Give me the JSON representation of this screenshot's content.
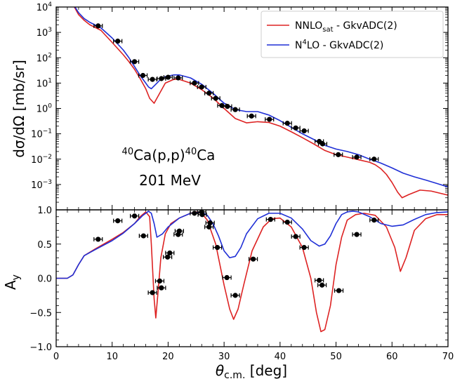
{
  "chart_data": [
    {
      "type": "line",
      "panel": "cross-section",
      "ylabel": "dσ/dΩ [mb/sr]",
      "yscale": "log",
      "xlim": [
        0,
        70
      ],
      "ylim_exp": [
        -4,
        4
      ],
      "y_tick_exponents": [
        -3,
        -2,
        -1,
        0,
        1,
        2,
        3,
        4
      ],
      "y_tick_labels": [
        "10^-3",
        "10^-2",
        "10^-1",
        "10^0",
        "10^1",
        "10^2",
        "10^3",
        "10^4"
      ],
      "annotation": [
        "40Ca(p,p)40Ca",
        "201 MeV"
      ],
      "legend_position": "top-right",
      "legend": [
        {
          "base": "NNLO",
          "sub": "sat",
          "rest": " - GkvADC(2)",
          "color": "#dd2222"
        },
        {
          "base": "N",
          "sup": "4",
          "rest": "LO - GkvADC(2)",
          "color": "#1f2fd6"
        }
      ],
      "series": [
        {
          "color": "#dd2222",
          "x": [
            0,
            2.5,
            4,
            5,
            6,
            8,
            10,
            12,
            13,
            14,
            15,
            16,
            16.7,
            17.5,
            18.5,
            19.5,
            21,
            22,
            24,
            26,
            28,
            30,
            32,
            34,
            36,
            38,
            40,
            42,
            44,
            46,
            48,
            50,
            52,
            54,
            56,
            57,
            58,
            59,
            60,
            61,
            61.8,
            63,
            65,
            67,
            70
          ],
          "y": [
            20000,
            20000,
            5000,
            3000,
            2000,
            1200,
            400,
            130,
            70,
            35,
            15,
            6,
            2.5,
            1.6,
            4,
            10,
            14,
            14,
            10,
            5.5,
            2.6,
            1.0,
            0.4,
            0.27,
            0.3,
            0.28,
            0.2,
            0.12,
            0.07,
            0.04,
            0.022,
            0.015,
            0.012,
            0.0095,
            0.0075,
            0.006,
            0.0042,
            0.0025,
            0.0012,
            0.0005,
            0.0003,
            0.0004,
            0.0006,
            0.00055,
            0.00038
          ]
        },
        {
          "color": "#1f2fd6",
          "x": [
            0,
            2.5,
            4,
            5,
            6,
            8,
            10,
            12,
            13,
            14,
            15,
            16,
            16.5,
            17,
            17.8,
            18.5,
            19.5,
            21,
            22,
            24,
            26,
            28,
            30,
            32,
            34,
            36,
            38,
            40,
            42,
            44,
            46,
            48,
            50,
            52,
            54,
            56,
            58,
            60,
            62,
            64,
            66,
            68,
            70
          ],
          "y": [
            20000,
            20000,
            6000,
            3500,
            2500,
            1500,
            600,
            200,
            100,
            45,
            20,
            10,
            7,
            6,
            9,
            13,
            18,
            21,
            21,
            16,
            9,
            4,
            1.6,
            0.9,
            0.75,
            0.75,
            0.55,
            0.33,
            0.18,
            0.1,
            0.06,
            0.035,
            0.025,
            0.02,
            0.015,
            0.01,
            0.007,
            0.0045,
            0.0028,
            0.002,
            0.0015,
            0.0011,
            0.0008
          ]
        }
      ],
      "points": {
        "x": [
          7.5,
          11,
          14,
          15.5,
          17.2,
          18.8,
          20,
          21.8,
          24.7,
          26,
          27.3,
          28.5,
          29.6,
          30.6,
          32,
          34.9,
          38.1,
          41.3,
          42.8,
          44.3,
          47,
          47.6,
          50.4,
          53.7,
          56.8
        ],
        "y": [
          1800,
          450,
          70,
          20,
          14,
          15,
          17,
          16,
          10,
          7,
          4,
          2.5,
          1.3,
          1.2,
          0.9,
          0.5,
          0.37,
          0.26,
          0.17,
          0.13,
          0.05,
          0.04,
          0.015,
          0.012,
          0.01
        ]
      }
    },
    {
      "type": "line",
      "panel": "analyzing-power",
      "xlabel": "θc.m. [deg]",
      "ylabel": "Ay",
      "xlim": [
        0,
        70
      ],
      "ylim": [
        -1,
        1
      ],
      "x_ticks": [
        0,
        10,
        20,
        30,
        40,
        50,
        60,
        70
      ],
      "x_tick_labels": [
        "0",
        "10",
        "20",
        "30",
        "40",
        "50",
        "60",
        "70"
      ],
      "y_ticks": [
        -1,
        -0.5,
        0,
        0.5,
        1
      ],
      "y_tick_labels": [
        "−1.0",
        "−0.5",
        "0.0",
        "0.5",
        "1.0"
      ],
      "series": [
        {
          "color": "#dd2222",
          "x": [
            0,
            2,
            3,
            4,
            5,
            7,
            10,
            12,
            14,
            15,
            16,
            16.7,
            17,
            17.5,
            17.8,
            18.2,
            18.7,
            19.5,
            20.5,
            22,
            24,
            25,
            26,
            27,
            28.5,
            30,
            31,
            31.7,
            32.5,
            33.5,
            35,
            37,
            38.5,
            40,
            42,
            44,
            45.5,
            46.5,
            47.3,
            48,
            49,
            50,
            51,
            52,
            53.5,
            55,
            57,
            59,
            60.5,
            61.5,
            62.5,
            64,
            66,
            68,
            70
          ],
          "y": [
            0,
            0,
            0.05,
            0.2,
            0.33,
            0.43,
            0.57,
            0.67,
            0.8,
            0.9,
            0.97,
            0.9,
            0.5,
            -0.3,
            -0.58,
            -0.2,
            0.3,
            0.65,
            0.8,
            0.88,
            0.95,
            0.97,
            0.95,
            0.85,
            0.5,
            -0.1,
            -0.45,
            -0.6,
            -0.45,
            -0.1,
            0.4,
            0.75,
            0.87,
            0.88,
            0.75,
            0.45,
            0.0,
            -0.5,
            -0.78,
            -0.75,
            -0.4,
            0.2,
            0.6,
            0.85,
            0.93,
            0.95,
            0.92,
            0.75,
            0.45,
            0.1,
            0.3,
            0.7,
            0.87,
            0.93,
            0.93
          ]
        },
        {
          "color": "#1f2fd6",
          "x": [
            0,
            2,
            3,
            4,
            5,
            7,
            10,
            12,
            14,
            15.5,
            16.5,
            17,
            17.5,
            18,
            19,
            20,
            22,
            24,
            26,
            27,
            28,
            29,
            30,
            31,
            32,
            33,
            34,
            36,
            38,
            40,
            42,
            44,
            45.5,
            47,
            48,
            49,
            50,
            51,
            52,
            53,
            54,
            56,
            58,
            60,
            62,
            64,
            66,
            68,
            70
          ],
          "y": [
            0,
            0,
            0.05,
            0.2,
            0.33,
            0.42,
            0.55,
            0.66,
            0.8,
            0.92,
            0.98,
            0.95,
            0.8,
            0.6,
            0.65,
            0.75,
            0.88,
            0.95,
            0.97,
            0.92,
            0.8,
            0.62,
            0.4,
            0.3,
            0.32,
            0.45,
            0.65,
            0.87,
            0.95,
            0.95,
            0.88,
            0.72,
            0.55,
            0.47,
            0.5,
            0.62,
            0.8,
            0.93,
            0.97,
            0.98,
            0.97,
            0.9,
            0.8,
            0.76,
            0.78,
            0.86,
            0.93,
            0.96,
            0.97
          ]
        }
      ],
      "points": {
        "x": [
          7.5,
          11,
          14,
          15.6,
          17.2,
          18.5,
          18.8,
          19.9,
          20.3,
          21.8,
          22,
          24.7,
          26,
          26.1,
          27.3,
          27.5,
          28.8,
          30.5,
          32,
          35.2,
          38.3,
          41.3,
          42.8,
          44.3,
          47,
          47.5,
          50.5,
          53.7,
          56.8
        ],
        "y": [
          0.57,
          0.84,
          0.91,
          0.62,
          -0.21,
          -0.04,
          -0.14,
          0.31,
          0.37,
          0.64,
          0.69,
          0.95,
          0.97,
          0.93,
          0.75,
          0.81,
          0.45,
          0.01,
          -0.25,
          0.28,
          0.86,
          0.82,
          0.61,
          0.45,
          -0.03,
          -0.1,
          -0.18,
          0.64,
          0.85
        ]
      }
    }
  ]
}
